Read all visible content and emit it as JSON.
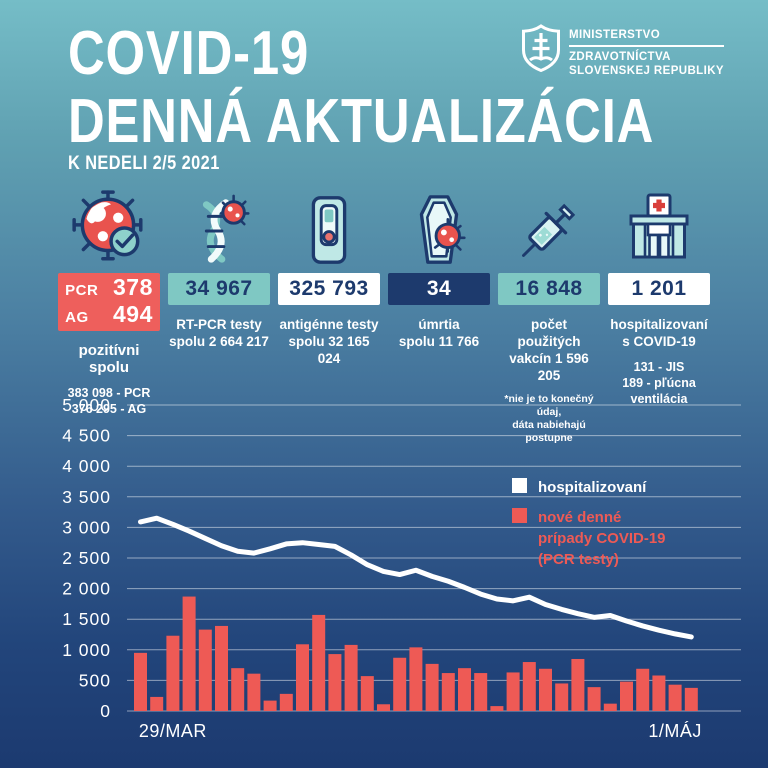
{
  "header": {
    "title_line1": "COVID-19",
    "title_line2": "DENNÁ AKTUALIZÁCIA",
    "date": "K NEDELI 2/5 2021",
    "logo": {
      "icon": "slovak-coat-of-arms",
      "line1": "MINISTERSTVO",
      "line2": "ZDRAVOTNÍCTVA",
      "line3": "SLOVENSKEJ REPUBLIKY"
    }
  },
  "colors": {
    "red": "#ee5f5c",
    "teal": "#7fc8c3",
    "white": "#ffffff",
    "navy": "#1d3a6d",
    "bar": "#ee5a55",
    "line": "#ffffff"
  },
  "stats": {
    "positive": {
      "icon": "virus-check-icon",
      "box_bg": "#ee5f5c",
      "box_fg": "#ffffff",
      "rows": [
        {
          "label": "PCR",
          "value": "378"
        },
        {
          "label": "AG",
          "value": "494"
        }
      ],
      "caption": "pozitívni spolu",
      "sub1": "383 098 - PCR",
      "sub2": "376 295 - AG"
    },
    "pcr_tests": {
      "icon": "dna-virus-icon",
      "box_bg": "#7fc8c3",
      "box_fg": "#1d3a6d",
      "value": "34 967",
      "caption_line1": "RT-PCR testy",
      "caption_line2": "spolu 2 664 217"
    },
    "ag_tests": {
      "icon": "antigen-test-icon",
      "box_bg": "#ffffff",
      "box_fg": "#1d3a6d",
      "value": "325 793",
      "caption_line1": "antigénne testy",
      "caption_line2": "spolu 32 165 024"
    },
    "deaths": {
      "icon": "coffin-virus-icon",
      "box_bg": "#1d3a6d",
      "box_fg": "#ffffff",
      "value": "34",
      "caption_line1": "úmrtia",
      "caption_line2": "spolu 11 766"
    },
    "vaccines": {
      "icon": "syringe-icon",
      "box_bg": "#7fc8c3",
      "box_fg": "#1d3a6d",
      "value": "16 848",
      "caption_line1": "počet použitých",
      "caption_line2": "vakcín 1 596 205",
      "note_line1": "*nie je to konečný údaj,",
      "note_line2": "dáta nabiehajú",
      "note_line3": "postupne"
    },
    "hospitalized": {
      "icon": "hospital-icon",
      "box_bg": "#ffffff",
      "box_fg": "#1d3a6d",
      "value": "1 201",
      "caption_line1": "hospitalizovaní",
      "caption_line2": "s COVID-19",
      "sub1": "131 - JIS",
      "sub2": "189 - pľúcna ventilácia"
    }
  },
  "chart_data": {
    "type": "bar",
    "title": "",
    "xlabel": "",
    "ylabel": "",
    "ylim": [
      0,
      5000
    ],
    "grid": true,
    "legend_position": "right-middle",
    "ytick_values": [
      5000,
      4500,
      4000,
      3500,
      3000,
      2500,
      2000,
      1500,
      1000,
      500,
      0
    ],
    "ytick_labels": [
      "5 000",
      "4 500",
      "4 000",
      "3 500",
      "3 000",
      "2 500",
      "2 000",
      "1 500",
      "1 000",
      "500",
      "0"
    ],
    "x_axis_labels": [
      {
        "label": "29/MAR",
        "at_index": 2
      },
      {
        "label": "1/MÁJ",
        "at_index": 33
      }
    ],
    "x_range_note": "daily values from 29 March 2021 to 2 May 2021 (35 days)",
    "series": [
      {
        "name": "nové denné prípady COVID-19 (PCR testy)",
        "type": "bar",
        "color": "#ee5a55",
        "values": [
          950,
          230,
          1230,
          1870,
          1330,
          1390,
          700,
          610,
          170,
          280,
          1090,
          1570,
          930,
          1080,
          570,
          110,
          870,
          1040,
          770,
          620,
          700,
          620,
          80,
          630,
          800,
          690,
          450,
          850,
          390,
          120,
          480,
          690,
          580,
          430,
          378
        ]
      },
      {
        "name": "hospitalizovaní",
        "type": "line",
        "color": "#ffffff",
        "values": [
          3090,
          3150,
          3050,
          2940,
          2820,
          2700,
          2610,
          2580,
          2650,
          2730,
          2750,
          2720,
          2690,
          2550,
          2390,
          2280,
          2230,
          2300,
          2200,
          2120,
          2020,
          1910,
          1830,
          1800,
          1860,
          1740,
          1660,
          1590,
          1530,
          1560,
          1470,
          1390,
          1320,
          1260,
          1210
        ]
      }
    ],
    "legend": [
      {
        "swatch_color": "#ffffff",
        "text_color": "#ffffff",
        "lines": [
          "hospitalizovaní"
        ]
      },
      {
        "swatch_color": "#ee5a55",
        "text_color": "#ee5a55",
        "lines": [
          "nové denné",
          "prípady COVID-19",
          "(PCR testy)"
        ]
      }
    ]
  }
}
